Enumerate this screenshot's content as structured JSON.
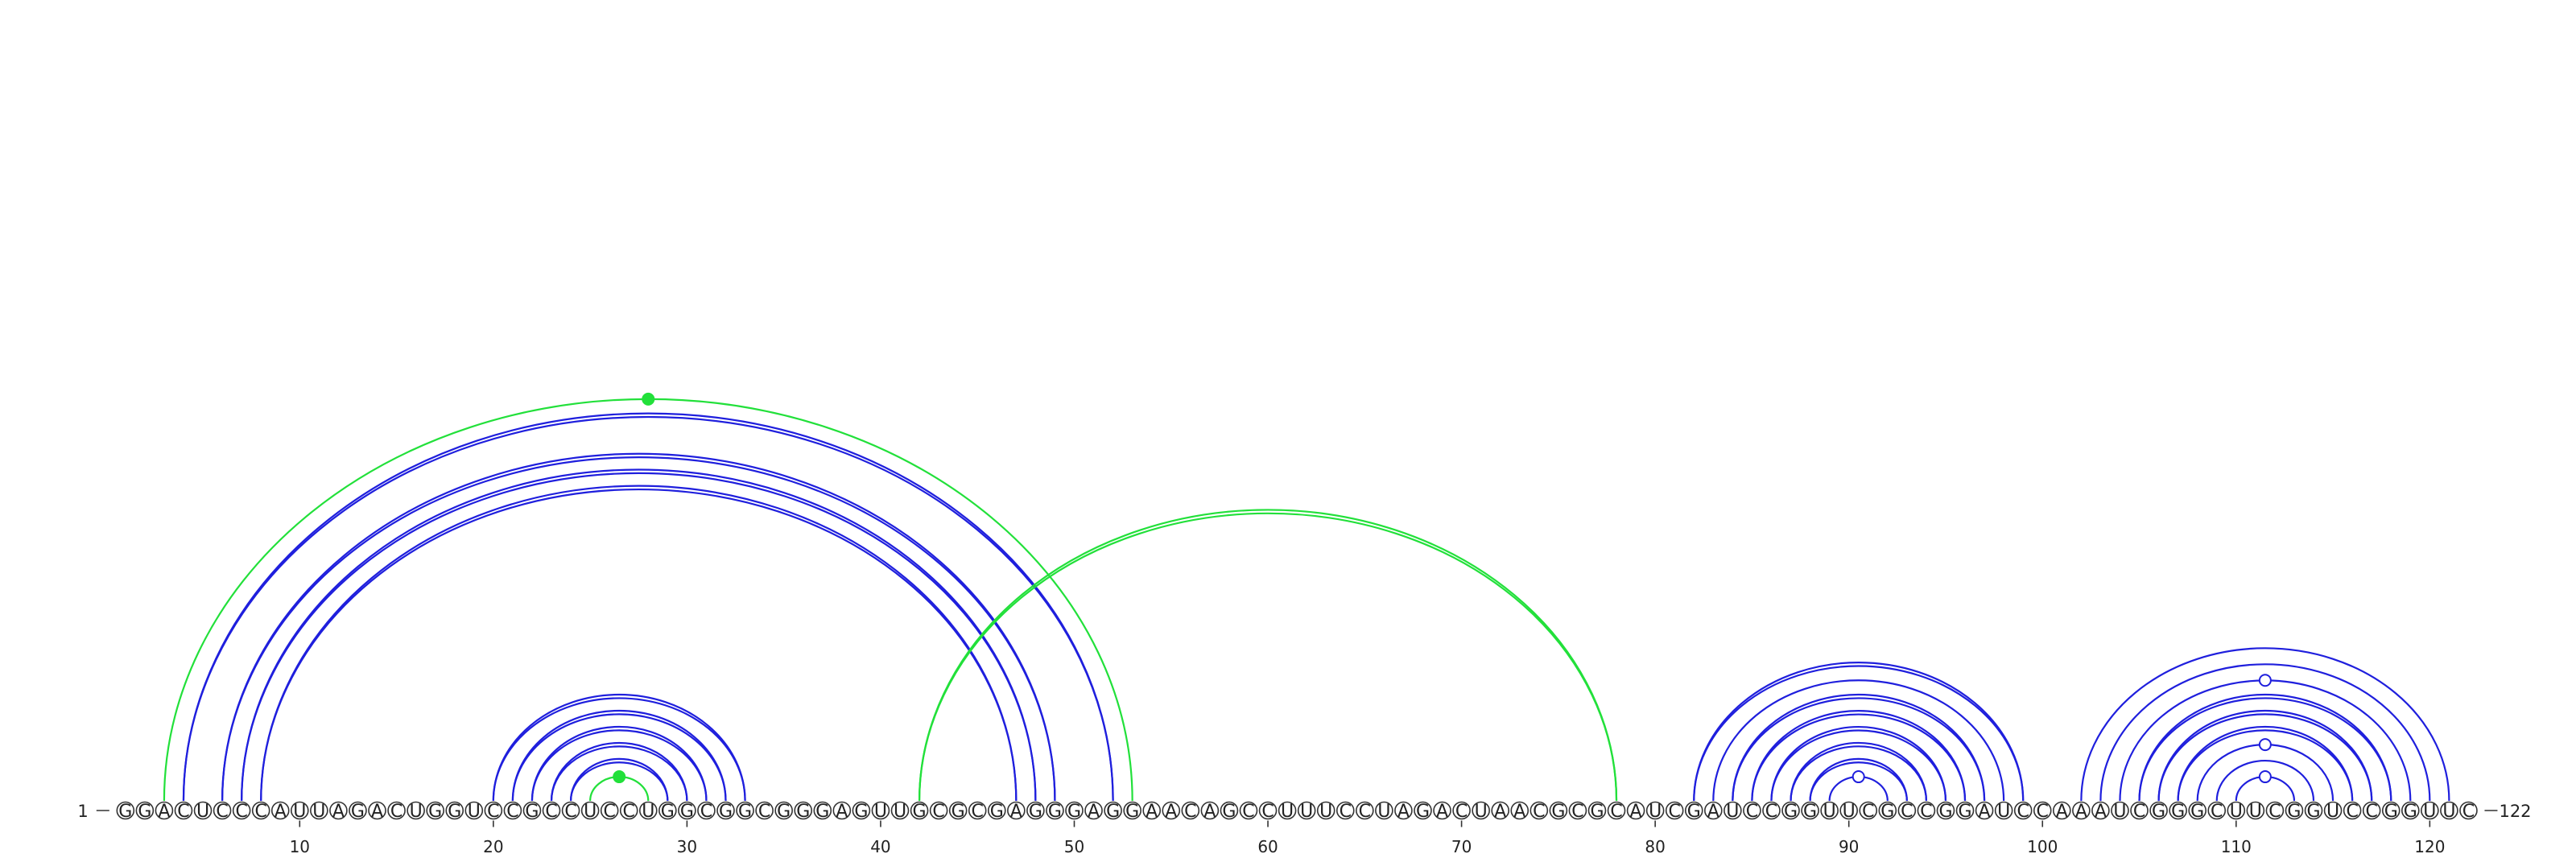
{
  "diagram": {
    "sequence": "GGACUCCCAUUAGACUGGUCCGCCUCCUGGCGGCGGGAGUUGCGCGAGGGAGGAACAGCCUUUCCUAGACUAACGCGCAUCGAUCCGGUUCGCCGGAUCCAAAUCGGGCUUCGGUCCGGUUC",
    "length": 122,
    "start_label": "1",
    "end_label": "122",
    "tick_values": [
      10,
      20,
      30,
      40,
      50,
      60,
      70,
      80,
      90,
      100,
      110,
      120
    ],
    "colors": {
      "primary_arc": "#1f1fdd",
      "alternate_arc": "#22e03a",
      "nucleotide_border": "#333333",
      "text": "#222222"
    },
    "arcs": [
      {
        "i": 3,
        "j": 53,
        "color": "green",
        "double": false
      },
      {
        "i": 4,
        "j": 52,
        "color": "blue",
        "double": true
      },
      {
        "i": 6,
        "j": 49,
        "color": "blue",
        "double": true
      },
      {
        "i": 7,
        "j": 48,
        "color": "blue",
        "double": true
      },
      {
        "i": 8,
        "j": 47,
        "color": "blue",
        "double": true
      },
      {
        "i": 20,
        "j": 33,
        "color": "blue",
        "double": true
      },
      {
        "i": 21,
        "j": 32,
        "color": "blue",
        "double": true
      },
      {
        "i": 22,
        "j": 31,
        "color": "blue",
        "double": true
      },
      {
        "i": 23,
        "j": 30,
        "color": "blue",
        "double": true
      },
      {
        "i": 24,
        "j": 29,
        "color": "blue",
        "double": true
      },
      {
        "i": 25,
        "j": 28,
        "color": "green",
        "double": false
      },
      {
        "i": 42,
        "j": 78,
        "color": "green",
        "double": true
      },
      {
        "i": 82,
        "j": 99,
        "color": "blue",
        "double": true
      },
      {
        "i": 83,
        "j": 98,
        "color": "blue",
        "double": false
      },
      {
        "i": 84,
        "j": 97,
        "color": "blue",
        "double": true
      },
      {
        "i": 85,
        "j": 96,
        "color": "blue",
        "double": true
      },
      {
        "i": 86,
        "j": 95,
        "color": "blue",
        "double": true
      },
      {
        "i": 87,
        "j": 94,
        "color": "blue",
        "double": true
      },
      {
        "i": 88,
        "j": 93,
        "color": "blue",
        "double": true
      },
      {
        "i": 89,
        "j": 92,
        "color": "blue",
        "double": false
      },
      {
        "i": 102,
        "j": 121,
        "color": "blue",
        "double": false
      },
      {
        "i": 103,
        "j": 120,
        "color": "blue",
        "double": false
      },
      {
        "i": 104,
        "j": 119,
        "color": "blue",
        "double": false
      },
      {
        "i": 105,
        "j": 118,
        "color": "blue",
        "double": true
      },
      {
        "i": 106,
        "j": 117,
        "color": "blue",
        "double": true
      },
      {
        "i": 107,
        "j": 116,
        "color": "blue",
        "double": true
      },
      {
        "i": 108,
        "j": 115,
        "color": "blue",
        "double": false
      },
      {
        "i": 109,
        "j": 114,
        "color": "blue",
        "double": false
      },
      {
        "i": 110,
        "j": 113,
        "color": "blue",
        "double": false
      }
    ],
    "markers": [
      {
        "i": 3,
        "j": 53,
        "fill": "green"
      },
      {
        "i": 25,
        "j": 28,
        "fill": "green"
      },
      {
        "i": 89,
        "j": 92,
        "fill": "none"
      },
      {
        "i": 104,
        "j": 119,
        "fill": "none"
      },
      {
        "i": 108,
        "j": 115,
        "fill": "none"
      },
      {
        "i": 110,
        "j": 113,
        "fill": "none"
      }
    ]
  }
}
